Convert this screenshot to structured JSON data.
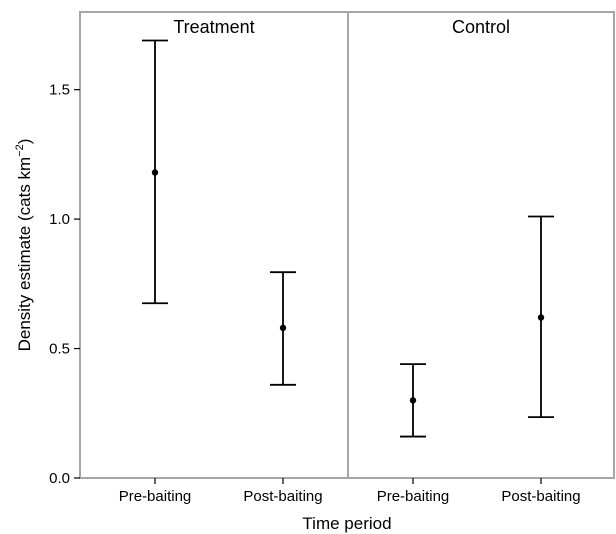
{
  "chart_data": {
    "type": "scatter",
    "title": "",
    "xlabel": "Time period",
    "ylabel_main": "Density estimate (cats km",
    "ylabel_sup": "−2",
    "ylabel_close": ")",
    "ylim": [
      0,
      1.8
    ],
    "yticks": [
      0.0,
      0.5,
      1.0,
      1.5
    ],
    "ytick_labels": [
      "0.0",
      "0.5",
      "1.0",
      "1.5"
    ],
    "panels": [
      {
        "name": "Treatment",
        "categories": [
          "Pre-baiting",
          "Post-baiting"
        ],
        "estimate": [
          1.18,
          0.58
        ],
        "lower": [
          0.675,
          0.36
        ],
        "upper": [
          1.69,
          0.795
        ]
      },
      {
        "name": "Control",
        "categories": [
          "Pre-baiting",
          "Post-baiting"
        ],
        "estimate": [
          0.3,
          0.62
        ],
        "lower": [
          0.16,
          0.235
        ],
        "upper": [
          0.44,
          1.01
        ]
      }
    ]
  }
}
